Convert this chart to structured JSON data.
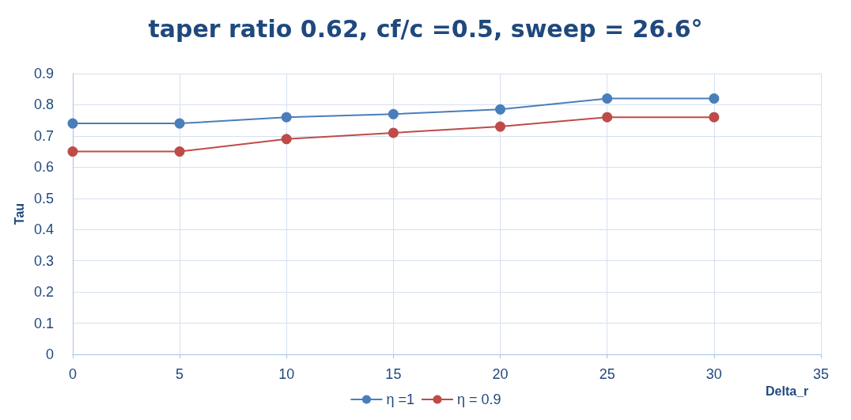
{
  "chart_data": {
    "type": "line",
    "title": "taper ratio 0.62, cf/c =0.5, sweep = 26.6°",
    "xlabel": "Delta_r",
    "ylabel": "Tau",
    "x": [
      0,
      5,
      10,
      15,
      20,
      25,
      30
    ],
    "series": [
      {
        "name": "η =1",
        "color": "#4a7ebb",
        "values": [
          0.74,
          0.74,
          0.76,
          0.77,
          0.785,
          0.82,
          0.82
        ]
      },
      {
        "name": "η = 0.9",
        "color": "#be4b48",
        "values": [
          0.65,
          0.65,
          0.69,
          0.71,
          0.73,
          0.76,
          0.76
        ]
      }
    ],
    "xlim": [
      0,
      35
    ],
    "xticks": [
      0,
      5,
      10,
      15,
      20,
      25,
      30,
      35
    ],
    "ylim": [
      0,
      0.9
    ],
    "yticks": [
      0,
      0.1,
      0.2,
      0.3,
      0.4,
      0.5,
      0.6,
      0.7,
      0.8,
      0.9
    ],
    "grid": true,
    "legend": "bottom",
    "marker": "circle",
    "line_style": "solid"
  }
}
